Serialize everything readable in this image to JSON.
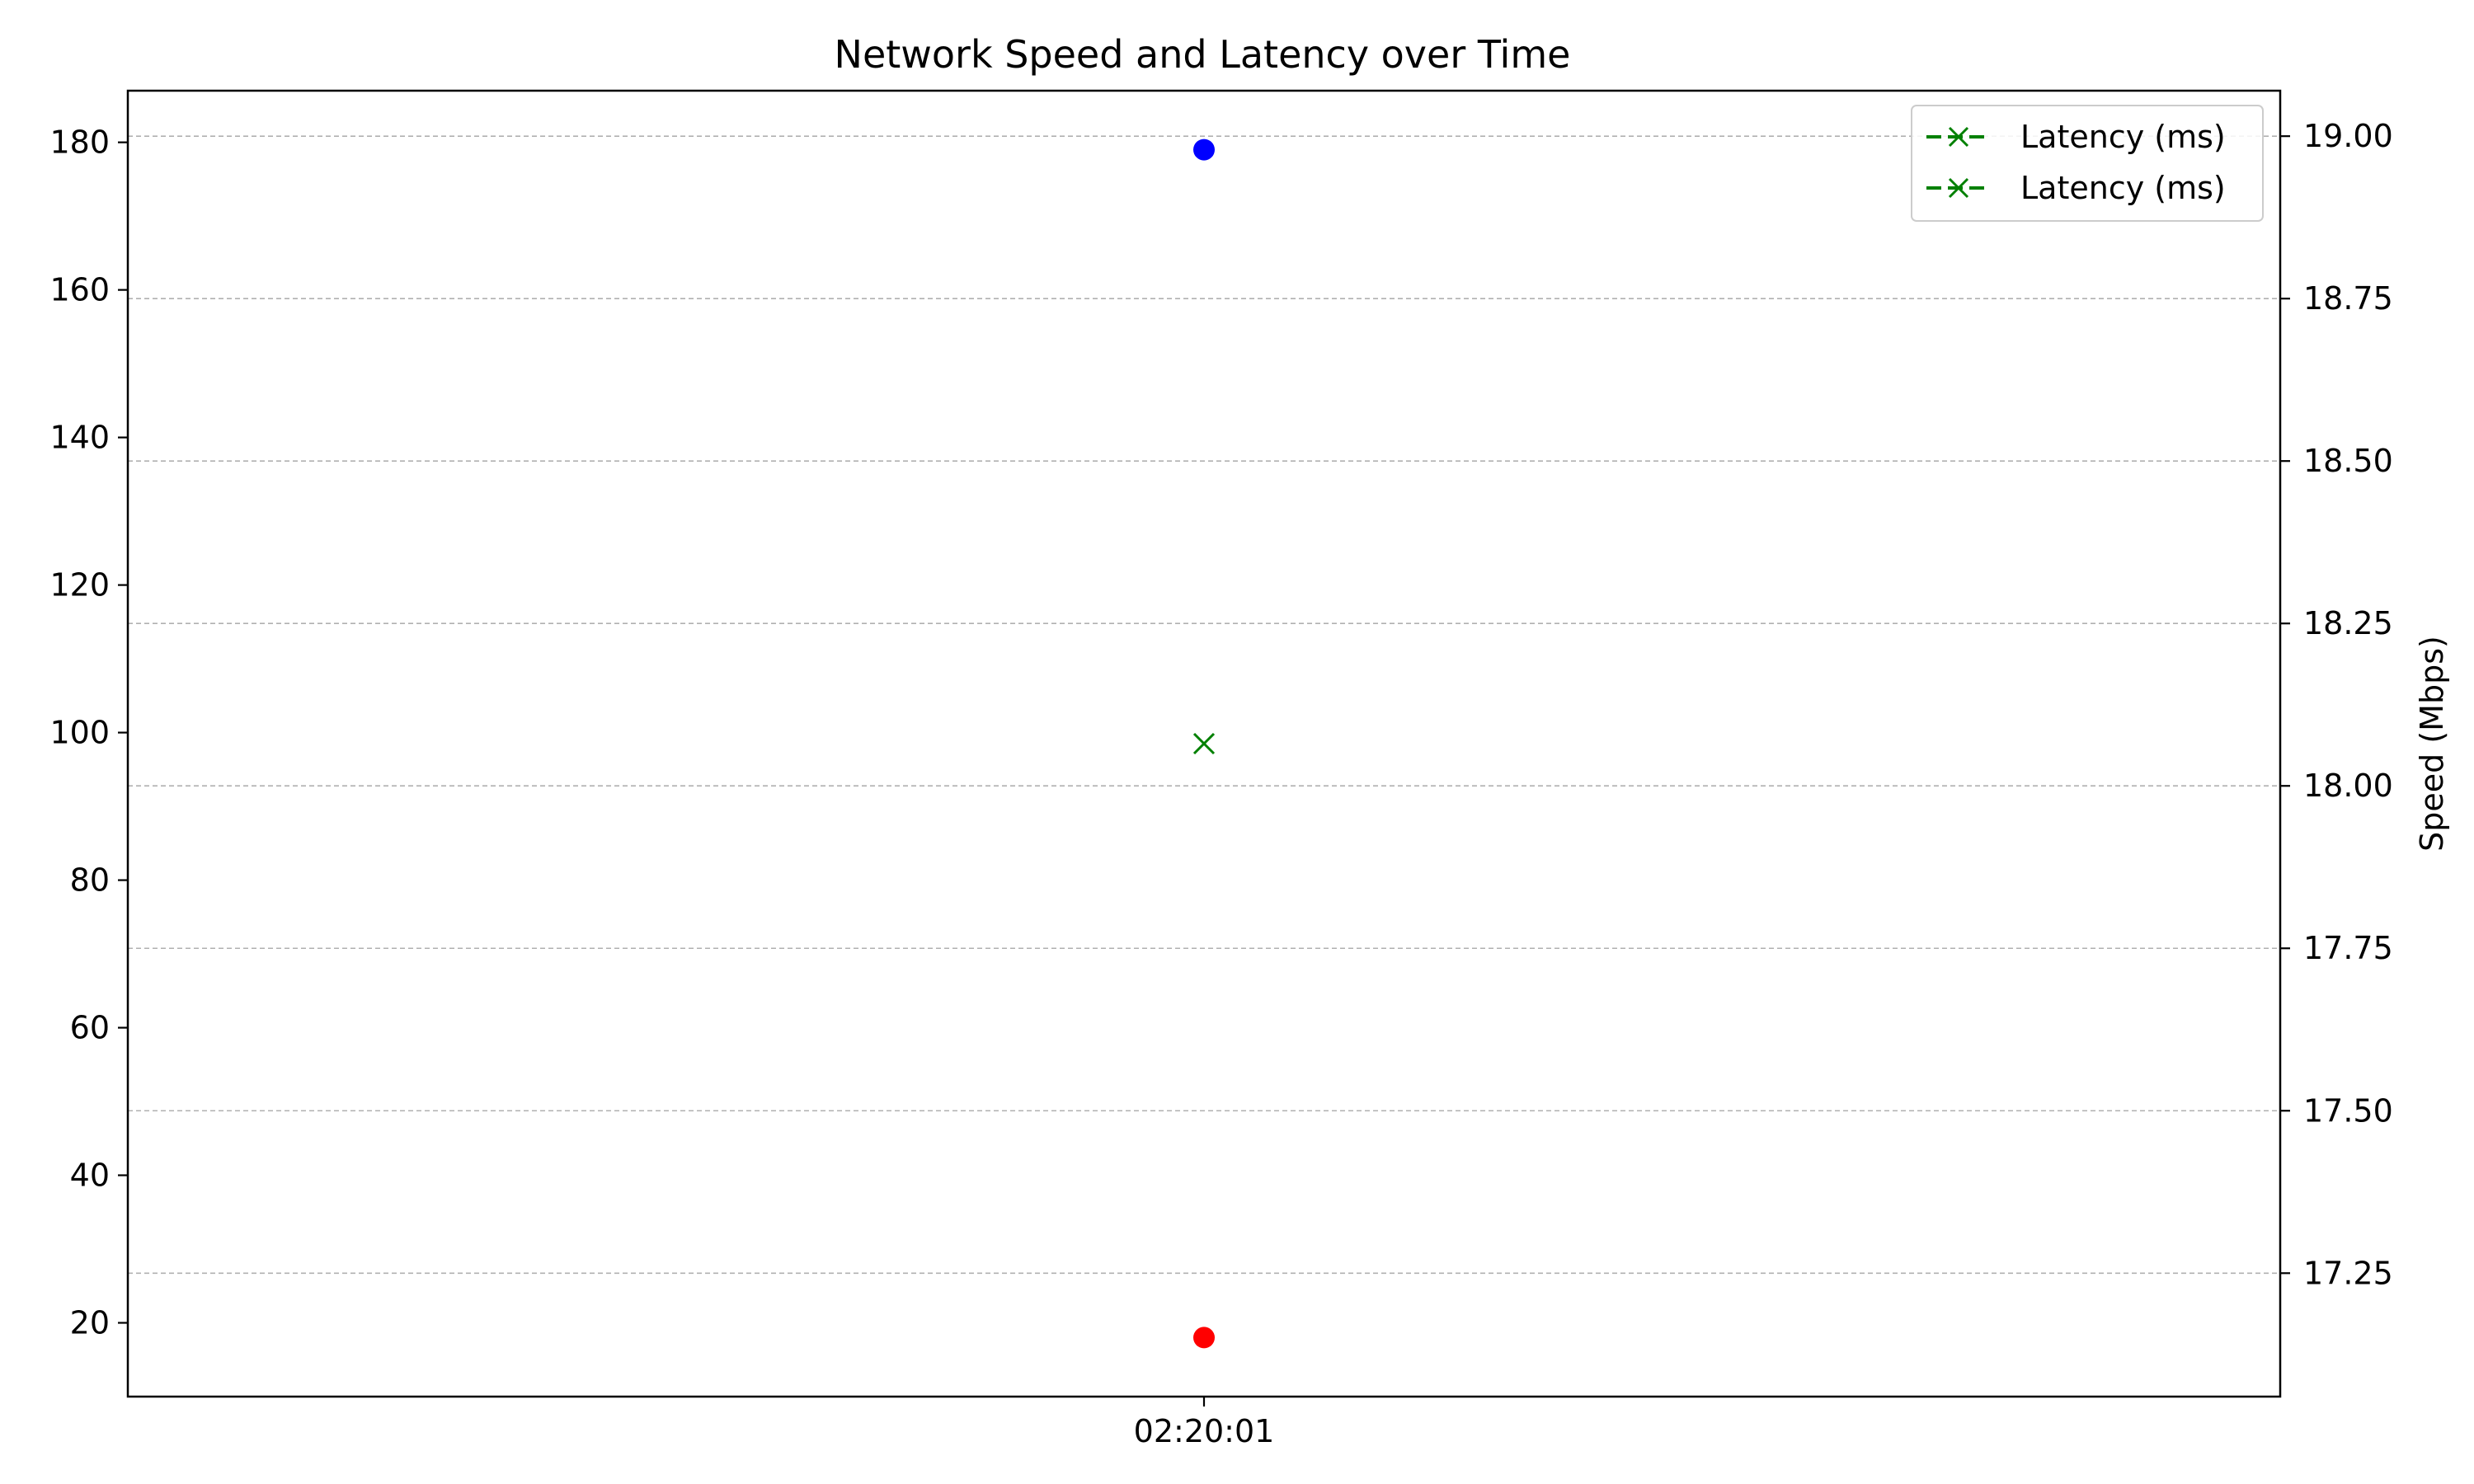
{
  "chart_data": {
    "type": "scatter",
    "title": "Network Speed and Latency over Time",
    "xlabel": "",
    "ylabel_left": "",
    "ylabel_right": "Speed (Mbps)",
    "x_ticks": [
      "02:20:01"
    ],
    "left_axis": {
      "ylim": [
        10.0,
        187.0
      ],
      "ticks": [
        20,
        40,
        60,
        80,
        100,
        120,
        140,
        160,
        180
      ]
    },
    "right_axis": {
      "ylim": [
        17.06,
        19.07
      ],
      "ticks": [
        "17.25",
        "17.50",
        "17.75",
        "18.00",
        "18.25",
        "18.50",
        "18.75",
        "19.00"
      ]
    },
    "grid": {
      "enabled": true,
      "axis": "y",
      "style": "dashed",
      "color": "#b0b0b0"
    },
    "series": [
      {
        "axis": "left",
        "color": "#0000ff",
        "marker": "circle",
        "points": [
          {
            "x": "02:20:01",
            "y": 179
          }
        ]
      },
      {
        "axis": "left",
        "color": "#ff0000",
        "marker": "circle",
        "points": [
          {
            "x": "02:20:01",
            "y": 18
          }
        ]
      },
      {
        "name": "Latency (ms)",
        "axis": "left",
        "color": "#008000",
        "marker": "x",
        "points": [
          {
            "x": "02:20:01",
            "y": 98.5
          }
        ]
      }
    ],
    "legend": {
      "placement": "top-right",
      "entries": [
        {
          "label": "Latency (ms)",
          "color": "#008000",
          "marker": "x",
          "linestyle": "dashed"
        },
        {
          "label": "Latency (ms)",
          "color": "#008000",
          "marker": "x",
          "linestyle": "dashed"
        }
      ]
    }
  }
}
